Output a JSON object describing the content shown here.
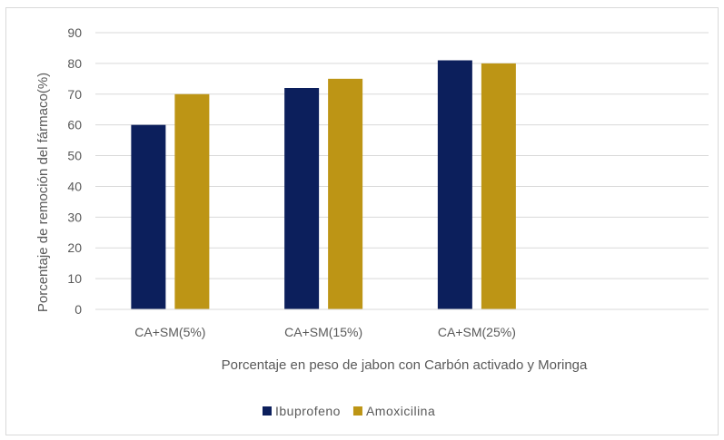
{
  "chart_data": {
    "type": "bar",
    "title": "",
    "categories": [
      "CA+SM(5%)",
      "CA+SM(15%)",
      "CA+SM(25%)"
    ],
    "series": [
      {
        "name": "Ibuprofeno",
        "values": [
          60,
          72,
          81
        ],
        "color": "#0c1f5c"
      },
      {
        "name": "Amoxicilina",
        "values": [
          70,
          75,
          80
        ],
        "color": "#bd9515"
      }
    ],
    "xlabel": "Porcentaje en peso de jabon con Carbón activado y Moringa",
    "ylabel": "Porcentaje de remoción del fármaco(%)",
    "ylim": [
      0,
      90
    ],
    "yticks": [
      "0",
      "10",
      "20",
      "30",
      "40",
      "50",
      "60",
      "70",
      "80",
      "90"
    ],
    "grid": true,
    "legend_position": "bottom"
  }
}
